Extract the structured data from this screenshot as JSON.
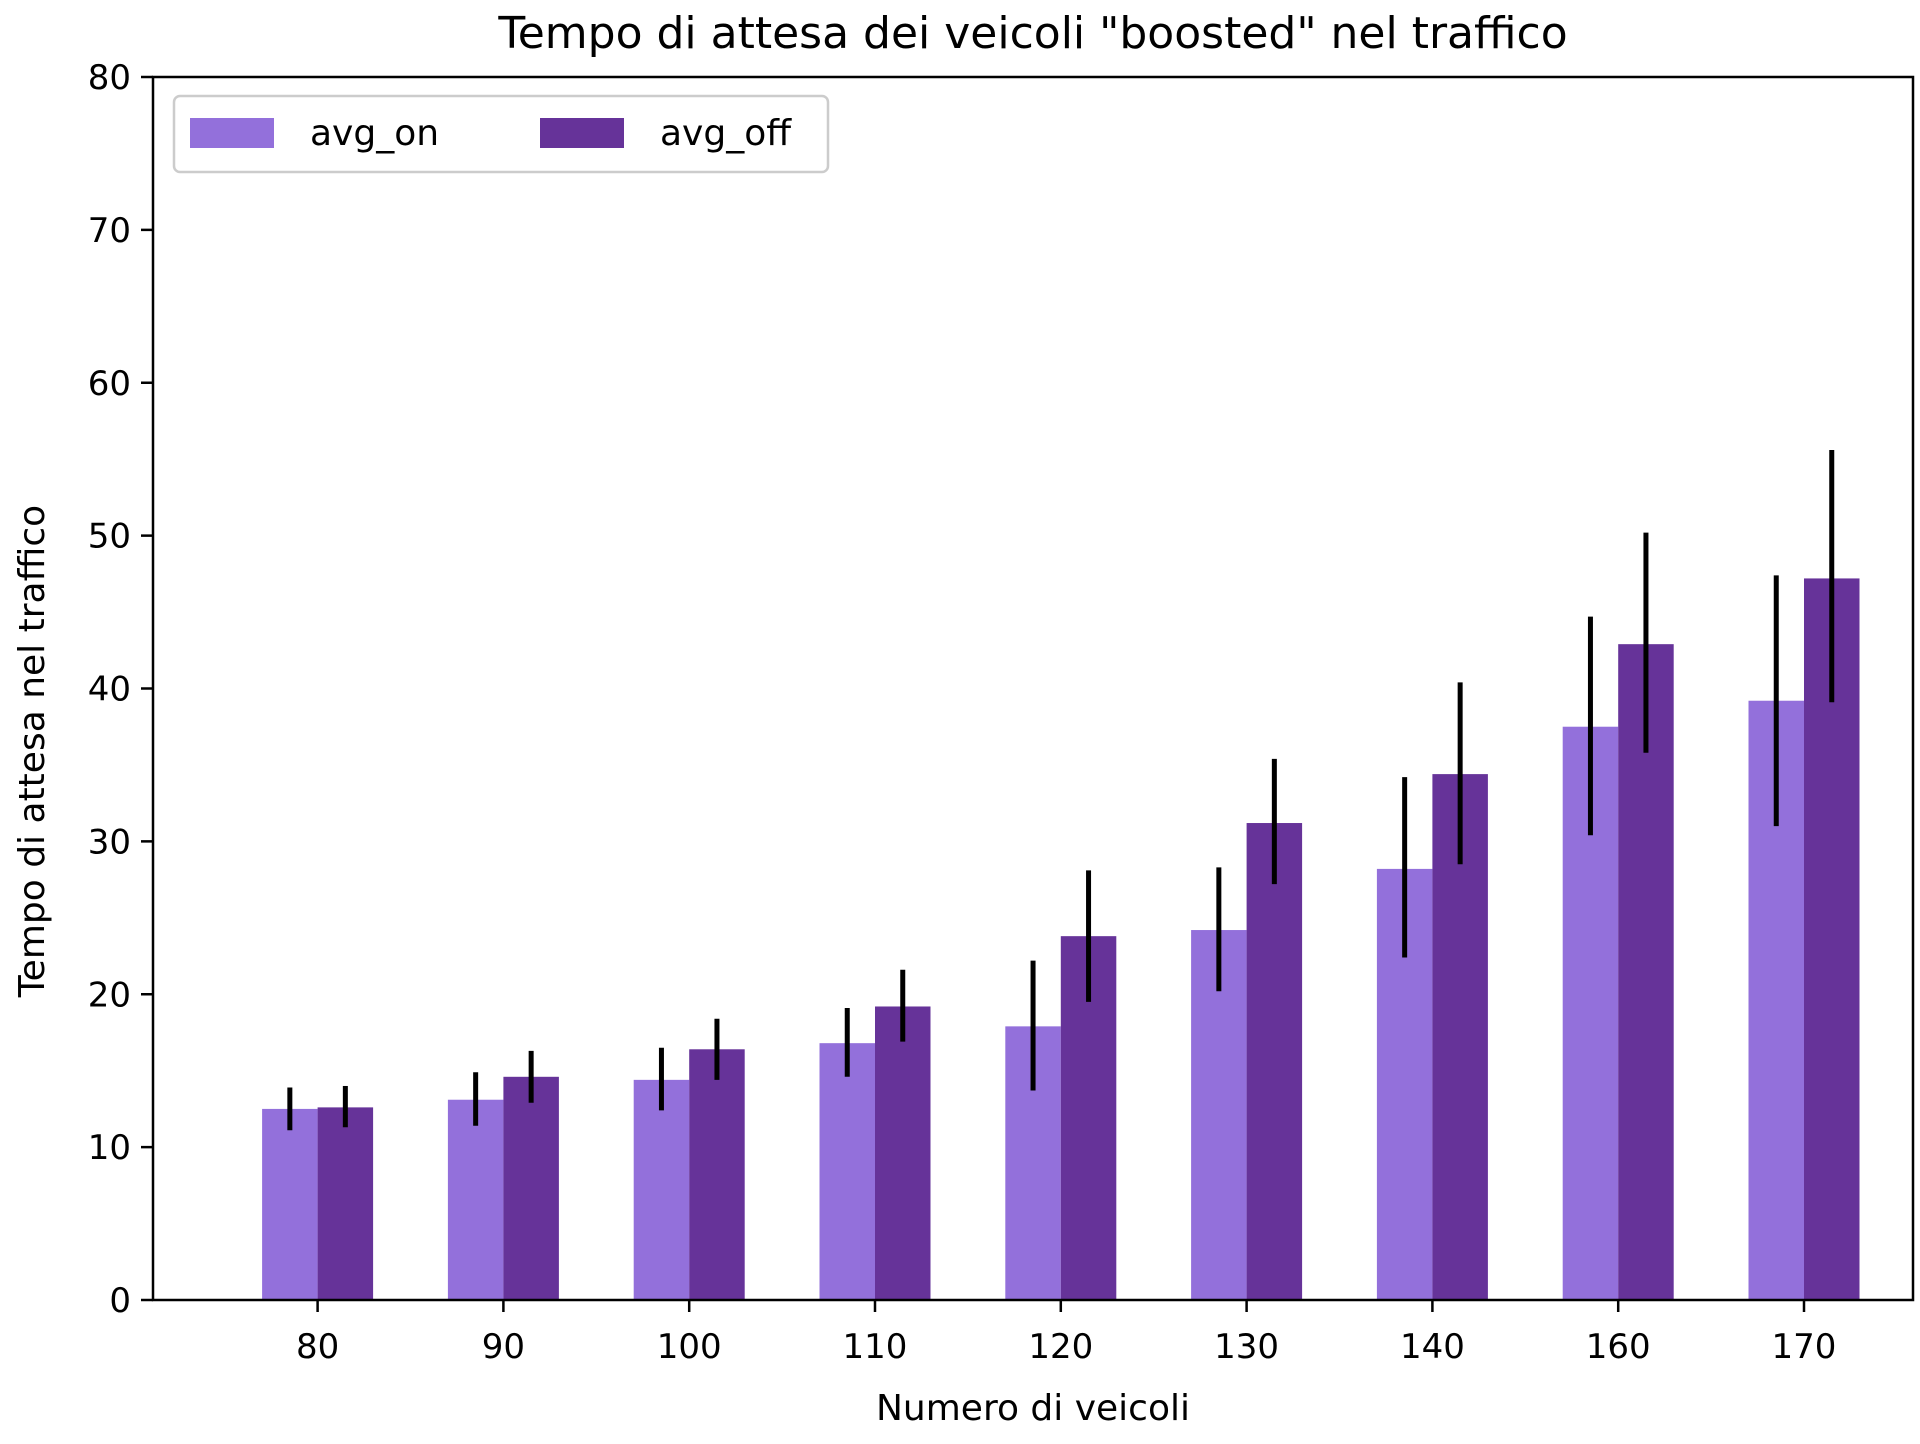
{
  "chart_data": {
    "type": "bar",
    "title": "Tempo di attesa dei veicoli \"boosted\" nel traffico",
    "xlabel": "Numero di veicoli",
    "ylabel": "Tempo di attesa nel traffico",
    "categories": [
      "80",
      "90",
      "100",
      "110",
      "120",
      "130",
      "140",
      "160",
      "170"
    ],
    "ylim": [
      0,
      80
    ],
    "yticks": [
      0,
      10,
      20,
      30,
      40,
      50,
      60,
      70,
      80
    ],
    "grid": false,
    "legend": {
      "placement": "top-left",
      "columns": 2
    },
    "series": [
      {
        "name": "avg_on",
        "color": "#9370db",
        "values": [
          12.5,
          13.1,
          14.4,
          16.8,
          17.9,
          24.2,
          28.2,
          37.5,
          39.2
        ],
        "error_low": [
          11.1,
          11.4,
          12.4,
          14.6,
          13.7,
          20.2,
          22.4,
          30.4,
          31.0
        ],
        "error_high": [
          13.9,
          14.9,
          16.5,
          19.1,
          22.2,
          28.3,
          34.2,
          44.7,
          47.4
        ]
      },
      {
        "name": "avg_off",
        "color": "#663399",
        "values": [
          12.6,
          14.6,
          16.4,
          19.2,
          23.8,
          31.2,
          34.4,
          42.9,
          47.2
        ],
        "error_low": [
          11.3,
          12.9,
          14.4,
          16.9,
          19.5,
          27.2,
          28.5,
          35.8,
          39.1
        ],
        "error_high": [
          14.0,
          16.3,
          18.4,
          21.6,
          28.1,
          35.4,
          40.4,
          50.2,
          55.6
        ]
      }
    ]
  }
}
